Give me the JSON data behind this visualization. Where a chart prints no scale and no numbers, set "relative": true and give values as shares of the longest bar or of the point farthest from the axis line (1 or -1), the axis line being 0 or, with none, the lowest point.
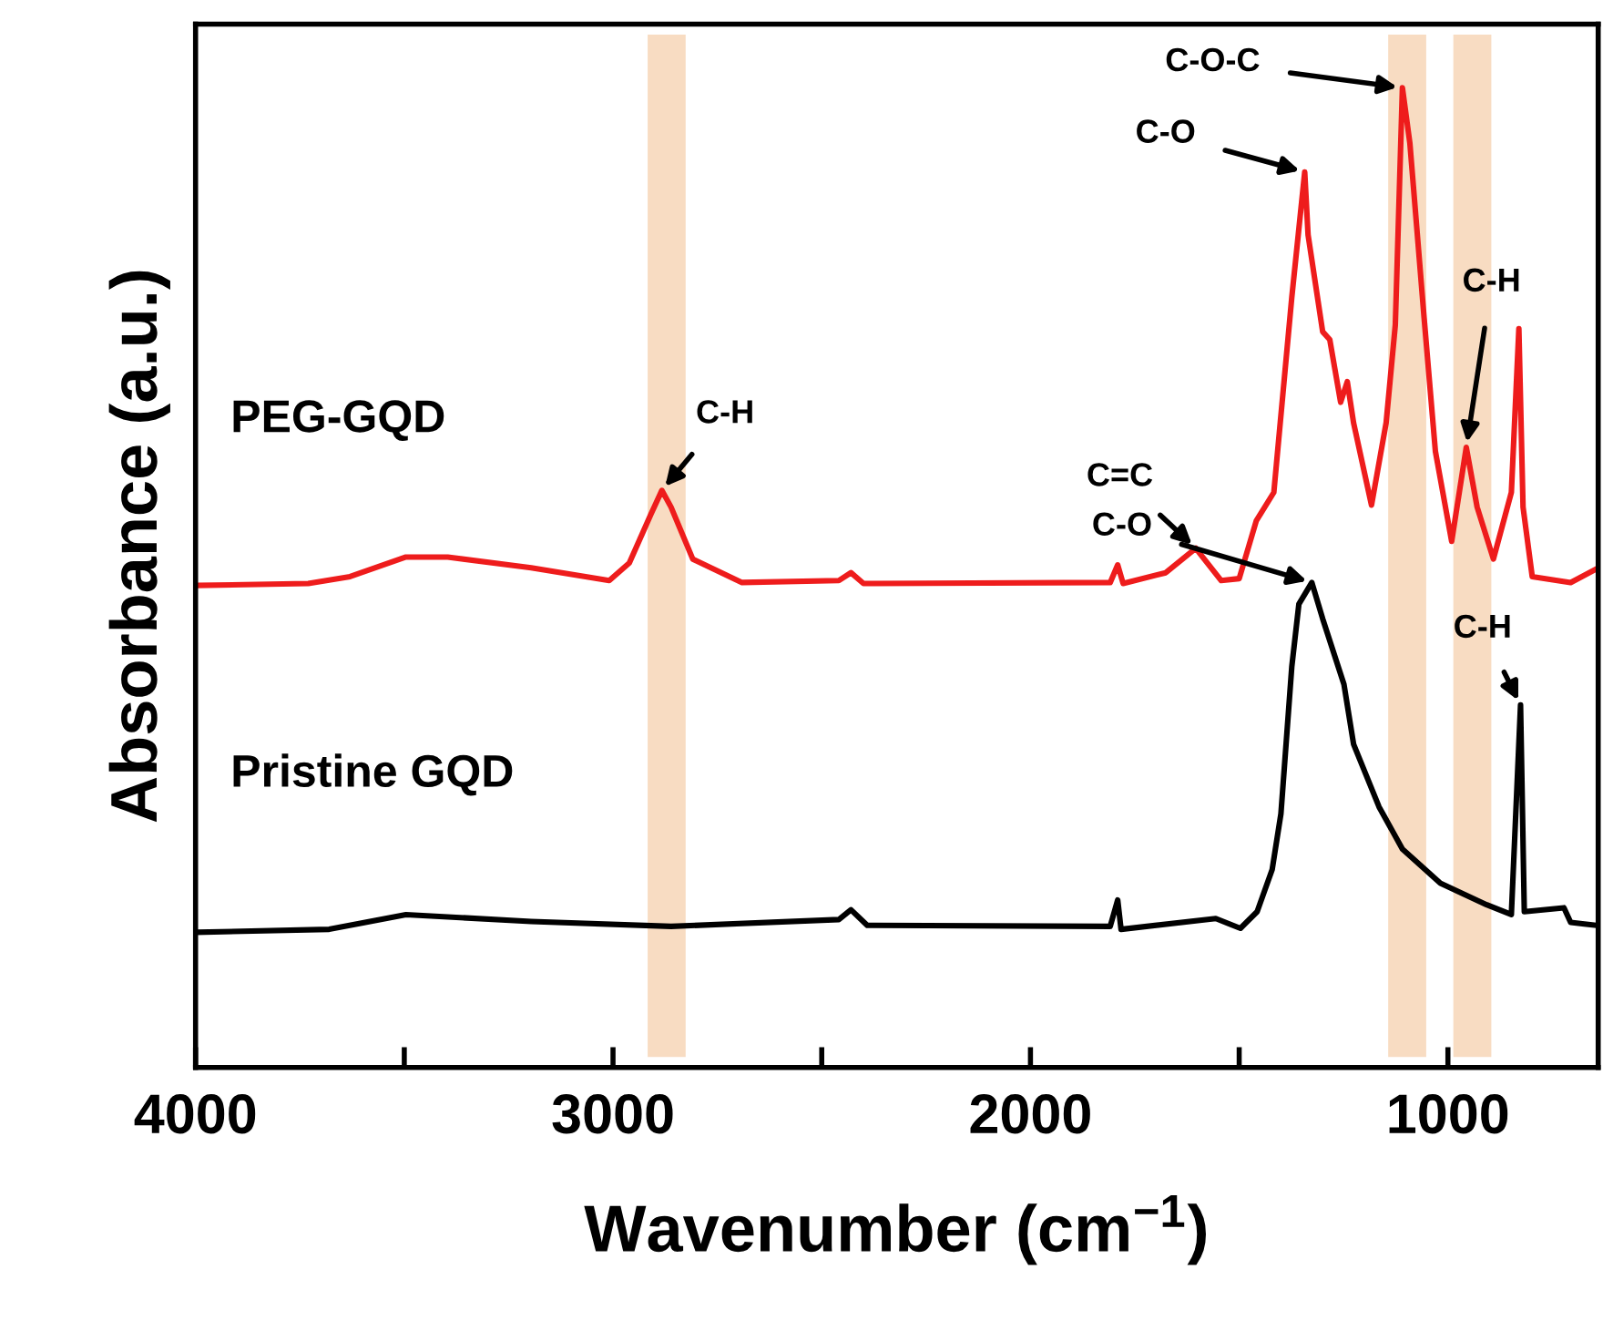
{
  "chart_data": {
    "type": "line",
    "relative": true,
    "xlabel": "Wavenumber (cm$^{−1}$)",
    "ylabel": "Absorbance (a.u.)",
    "xlim": [
      4000,
      640
    ],
    "xticks": [
      4000,
      {
        "value": 3500,
        "label": null
      },
      3000,
      {
        "value": 2500,
        "label": null
      },
      2000,
      {
        "value": 1500,
        "label": null
      },
      1000
    ],
    "grid": false,
    "series": [
      {
        "name": "PEG-GQD",
        "color": "#ee1c1c",
        "x": [
          3997,
          3730,
          3630,
          3496,
          3396,
          3196,
          3009,
          2961,
          2909,
          2883,
          2861,
          2809,
          2691,
          2459,
          2430,
          2400,
          2378,
          1809,
          1791,
          1778,
          1676,
          1604,
          1543,
          1500,
          1459,
          1417,
          1374,
          1343,
          1335,
          1300,
          1283,
          1257,
          1241,
          1226,
          1183,
          1148,
          1126,
          1109,
          1091,
          1057,
          1030,
          991,
          956,
          930,
          891,
          848,
          830,
          820,
          798,
          706,
          648
        ],
        "values": [
          0.492,
          0.494,
          0.501,
          0.521,
          0.521,
          0.51,
          0.497,
          0.515,
          0.565,
          0.589,
          0.572,
          0.519,
          0.495,
          0.497,
          0.505,
          0.494,
          0.494,
          0.495,
          0.513,
          0.494,
          0.505,
          0.53,
          0.497,
          0.499,
          0.558,
          0.587,
          0.786,
          0.914,
          0.85,
          0.751,
          0.743,
          0.679,
          0.7,
          0.658,
          0.574,
          0.658,
          0.758,
          1.0,
          0.943,
          0.765,
          0.629,
          0.537,
          0.633,
          0.572,
          0.519,
          0.587,
          0.754,
          0.572,
          0.501,
          0.495,
          0.508
        ]
      },
      {
        "name": "Pristine GQD",
        "color": "#000000",
        "x": [
          3997,
          3680,
          3496,
          3196,
          2861,
          2459,
          2430,
          2391,
          2378,
          1809,
          1791,
          1783,
          1556,
          1497,
          1457,
          1421,
          1400,
          1374,
          1357,
          1326,
          1300,
          1249,
          1226,
          1165,
          1109,
          1018,
          907,
          848,
          826,
          817,
          722,
          706,
          643
        ],
        "values": [
          0.138,
          0.141,
          0.156,
          0.149,
          0.144,
          0.151,
          0.161,
          0.145,
          0.145,
          0.144,
          0.171,
          0.141,
          0.152,
          0.142,
          0.159,
          0.202,
          0.259,
          0.409,
          0.473,
          0.495,
          0.458,
          0.391,
          0.33,
          0.266,
          0.223,
          0.188,
          0.166,
          0.156,
          0.37,
          0.159,
          0.163,
          0.148,
          0.145
        ]
      }
    ],
    "bands": [
      {
        "axis": "x",
        "from": 2917,
        "to": 2826,
        "color": "#f8dcc2"
      },
      {
        "axis": "x",
        "from": 1143,
        "to": 1052,
        "color": "#f8dcc2"
      },
      {
        "axis": "x",
        "from": 987,
        "to": 896,
        "color": "#f8dcc2"
      }
    ],
    "annotations": [
      {
        "text": "C-H",
        "x": 2883,
        "y": 0.589
      },
      {
        "text": "C=C",
        "x": 1604,
        "y": 0.53
      },
      {
        "text": "C-O",
        "x": 1343,
        "y": 0.914
      },
      {
        "text": "C-O-C",
        "x": 1109,
        "y": 1.0
      },
      {
        "text": "C-H",
        "x": 956,
        "y": 0.633
      },
      {
        "text": "C-O",
        "x": 1326,
        "y": 0.495
      },
      {
        "text": "C-H",
        "x": 826,
        "y": 0.37
      }
    ]
  }
}
